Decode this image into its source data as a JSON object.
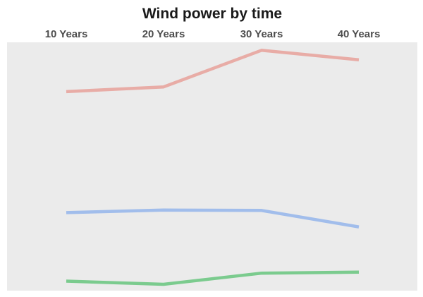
{
  "chart_data": {
    "type": "line",
    "title": "Wind power by time",
    "xlabel": "",
    "ylabel": "",
    "categories": [
      "10 Years",
      "20 Years",
      "30 Years",
      "40 Years"
    ],
    "series": [
      {
        "values": [
          16,
          15,
          18.5,
          18.8
        ],
        "color": "#7BCB8E"
      },
      {
        "values": [
          37.5,
          38.3,
          38.2,
          33
        ],
        "color": "#A1BDEB"
      },
      {
        "values": [
          75.5,
          77,
          88.5,
          85.5
        ],
        "color": "#E8ACA6"
      }
    ],
    "ylim": [
      13,
      91
    ],
    "x_axis_position": "top",
    "y_axis_shown": false,
    "grid": false,
    "legend": "none",
    "panel_background": "#EBEBEB"
  }
}
